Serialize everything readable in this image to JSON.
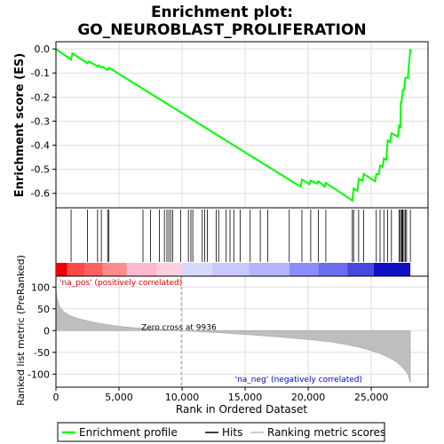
{
  "chart_data": [
    {
      "type": "line",
      "title": "Enrichment plot:",
      "subtitle": "GO_NEUROBLAST_PROLIFERATION",
      "ylabel": "Enrichment score (ES)",
      "xlim": [
        0,
        29500
      ],
      "ylim": [
        -0.66,
        0.03
      ],
      "yticks": [
        "0.0",
        "-0.1",
        "-0.2",
        "-0.3",
        "-0.4",
        "-0.5",
        "-0.6"
      ],
      "ytick_values": [
        0.0,
        -0.1,
        -0.2,
        -0.3,
        -0.4,
        -0.5,
        -0.6
      ],
      "grid": true,
      "series": [
        {
          "name": "Enrichment profile",
          "color": "#00ff00",
          "x": [
            0,
            1200,
            1300,
            2500,
            2600,
            3300,
            3400,
            3600,
            3700,
            4100,
            4200,
            19000,
            19400,
            19500,
            20100,
            20200,
            20700,
            20800,
            21300,
            21400,
            23500,
            23600,
            23900,
            24000,
            24300,
            24400,
            25300,
            25400,
            25600,
            25700,
            25900,
            26000,
            26200,
            26300,
            26500,
            26600,
            27100,
            27200,
            27300,
            27350,
            27400,
            27500,
            27600,
            27700,
            27900,
            28000,
            28100
          ],
          "y": [
            0.0,
            -0.045,
            -0.018,
            -0.06,
            -0.052,
            -0.072,
            -0.068,
            -0.078,
            -0.074,
            -0.088,
            -0.078,
            -0.56,
            -0.572,
            -0.543,
            -0.562,
            -0.547,
            -0.56,
            -0.55,
            -0.572,
            -0.557,
            -0.63,
            -0.58,
            -0.59,
            -0.54,
            -0.548,
            -0.52,
            -0.55,
            -0.52,
            -0.52,
            -0.485,
            -0.49,
            -0.455,
            -0.46,
            -0.38,
            -0.387,
            -0.35,
            -0.365,
            -0.32,
            -0.325,
            -0.22,
            -0.22,
            -0.17,
            -0.17,
            -0.12,
            -0.12,
            -0.06,
            0.0
          ]
        }
      ]
    },
    {
      "type": "scatter",
      "name": "Hits",
      "hits": [
        1200,
        2500,
        3300,
        3600,
        4100,
        4200,
        6900,
        7500,
        8200,
        8600,
        8800,
        8950,
        9100,
        9250,
        9900,
        10500,
        10700,
        10850,
        11600,
        11800,
        12000,
        12700,
        12900,
        13500,
        13800,
        14100,
        14600,
        15400,
        16200,
        16800,
        18500,
        19500,
        20200,
        20800,
        21400,
        23500,
        23600,
        24000,
        24400,
        25400,
        25700,
        26000,
        26300,
        26600,
        27200,
        27300,
        27400,
        27450,
        27500,
        27600,
        27700,
        27800,
        28100
      ]
    },
    {
      "type": "heatmap",
      "name": "Rank bar",
      "blocks": [
        {
          "x0": 0,
          "x1": 900,
          "color": "#ee0000"
        },
        {
          "x0": 900,
          "x1": 2300,
          "color": "#ff4848"
        },
        {
          "x0": 2300,
          "x1": 3700,
          "color": "#ff6060"
        },
        {
          "x0": 3700,
          "x1": 5600,
          "color": "#ff8c8c"
        },
        {
          "x0": 5600,
          "x1": 8000,
          "color": "#ffb8d0"
        },
        {
          "x0": 8000,
          "x1": 9936,
          "color": "#ffcfe0"
        },
        {
          "x0": 9936,
          "x1": 12400,
          "color": "#d8d8ff"
        },
        {
          "x0": 12400,
          "x1": 15300,
          "color": "#c8c8ff"
        },
        {
          "x0": 15300,
          "x1": 18500,
          "color": "#b4b4ff"
        },
        {
          "x0": 18500,
          "x1": 20800,
          "color": "#8c8cff"
        },
        {
          "x0": 20800,
          "x1": 23100,
          "color": "#6c6cf0"
        },
        {
          "x0": 23100,
          "x1": 25200,
          "color": "#4848e0"
        },
        {
          "x0": 25200,
          "x1": 28100,
          "color": "#1010c8"
        }
      ]
    },
    {
      "type": "area",
      "name": "Ranking metric scores",
      "ylabel": "Ranked list metric (PreRanked)",
      "xlabel": "Rank in Ordered Dataset",
      "xlim": [
        0,
        29500
      ],
      "ylim": [
        -130,
        125
      ],
      "yticks": [
        "100",
        "50",
        "0",
        "-50",
        "-100"
      ],
      "ytick_values": [
        100,
        50,
        0,
        -50,
        -100
      ],
      "xticks": [
        "0",
        "5,000",
        "10,000",
        "15,000",
        "20,000",
        "25,000"
      ],
      "xtick_values": [
        0,
        5000,
        10000,
        15000,
        20000,
        25000
      ],
      "x": [
        0,
        100,
        300,
        600,
        1000,
        1500,
        2000,
        3000,
        4000,
        5000,
        6000,
        7000,
        8000,
        9000,
        9936,
        11000,
        13000,
        15000,
        17000,
        19000,
        20500,
        22000,
        23000,
        24000,
        25000,
        25800,
        26400,
        27000,
        27400,
        27700,
        27900,
        28000,
        28100
      ],
      "y": [
        95,
        72,
        55,
        44,
        36,
        30,
        26,
        19,
        14,
        10,
        7,
        5,
        3,
        1.5,
        0,
        -2,
        -5,
        -9,
        -13,
        -18,
        -22,
        -27,
        -32,
        -38,
        -46,
        -54,
        -62,
        -72,
        -82,
        -92,
        -100,
        -110,
        -120
      ],
      "annotations": {
        "zero_cross": "Zero cross at 9936",
        "zero_cross_x": 9936,
        "pos_label": "'na_pos' (positively correlated)",
        "neg_label": "'na_neg' (negatively correlated)"
      }
    }
  ],
  "legend": {
    "placement": "bottom",
    "items": [
      {
        "label": "Enrichment profile",
        "color": "#00ff00"
      },
      {
        "label": "Hits",
        "color": "#000000"
      },
      {
        "label": "Ranking metric scores",
        "color": "#bebebe"
      }
    ]
  }
}
